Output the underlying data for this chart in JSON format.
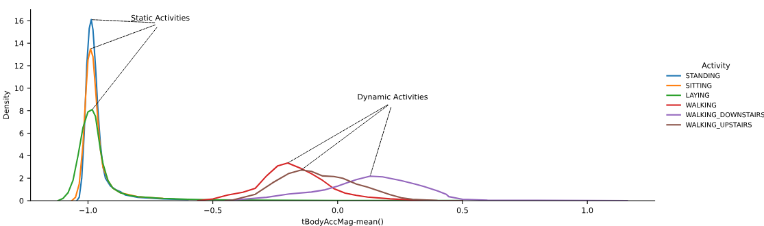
{
  "chart_data": {
    "type": "line",
    "xlabel": "tBodyAccMag-mean()",
    "ylabel": "Density",
    "legend_title": "Activity",
    "legend": "right",
    "grid": false,
    "marker": "none",
    "line_style": "solid",
    "xlim": [
      -1.23,
      1.27
    ],
    "ylim": [
      0,
      17
    ],
    "xticks": [
      {
        "value": -1.0,
        "label": "−1.0"
      },
      {
        "value": -0.5,
        "label": "−0.5"
      },
      {
        "value": 0.0,
        "label": "0.0"
      },
      {
        "value": 0.5,
        "label": "0.5"
      },
      {
        "value": 1.0,
        "label": "1.0"
      }
    ],
    "yticks": [
      0,
      2,
      4,
      6,
      8,
      10,
      12,
      14,
      16
    ],
    "annotations": [
      {
        "text": "Static Activities",
        "x": -0.987,
        "y": 16.1
      },
      {
        "text": "Dynamic Activities",
        "x": -0.2,
        "y": 3.35
      }
    ],
    "series": [
      {
        "name": "STANDING",
        "color": "#1f77b4",
        "x": [
          -1.045,
          -1.035,
          -1.025,
          -1.015,
          -1.005,
          -0.995,
          -0.987,
          -0.98,
          -0.97,
          -0.96,
          -0.95,
          -0.94,
          -0.93,
          -0.91,
          -0.89,
          -0.87,
          -0.85,
          -0.8,
          -0.7,
          -0.6
        ],
        "values": [
          0,
          0.3,
          2,
          6,
          12,
          15.3,
          16.1,
          15.2,
          12,
          8,
          5,
          3,
          2,
          1.3,
          1.0,
          0.8,
          0.5,
          0.3,
          0.15,
          0.1
        ]
      },
      {
        "name": "SITTING",
        "color": "#ff7f0e",
        "x": [
          -1.065,
          -1.05,
          -1.035,
          -1.02,
          -1.01,
          -1.0,
          -0.99,
          -0.98,
          -0.97,
          -0.96,
          -0.95,
          -0.94,
          -0.92,
          -0.9,
          -0.87,
          -0.83,
          -0.8,
          -0.7
        ],
        "values": [
          0,
          0.3,
          1.5,
          5,
          9,
          12.5,
          13.5,
          12.8,
          10,
          7,
          4.5,
          3,
          1.8,
          1.1,
          0.7,
          0.5,
          0.35,
          0.2
        ]
      },
      {
        "name": "LAYING",
        "color": "#2ca02c",
        "x": [
          -1.12,
          -1.1,
          -1.08,
          -1.06,
          -1.04,
          -1.02,
          -1.0,
          -0.983,
          -0.97,
          -0.96,
          -0.95,
          -0.94,
          -0.92,
          -0.9,
          -0.87,
          -0.83,
          -0.8,
          -0.7,
          -0.6,
          -0.5,
          -0.3,
          0.0,
          0.5
        ],
        "values": [
          0,
          0.2,
          0.7,
          1.8,
          4,
          6.5,
          7.9,
          8.1,
          7.5,
          6,
          4.5,
          3.3,
          1.8,
          1.1,
          0.7,
          0.45,
          0.35,
          0.2,
          0.12,
          0.08,
          0.04,
          0.02,
          0.01
        ]
      },
      {
        "name": "WALKING",
        "color": "#d62728",
        "x": [
          -0.56,
          -0.5,
          -0.44,
          -0.38,
          -0.33,
          -0.285,
          -0.24,
          -0.2,
          -0.15,
          -0.105,
          -0.06,
          -0.015,
          0.03,
          0.075,
          0.12,
          0.21,
          0.3,
          0.4
        ],
        "values": [
          0,
          0.15,
          0.5,
          0.75,
          1.1,
          2.2,
          3.1,
          3.35,
          2.9,
          2.4,
          1.8,
          1.07,
          0.67,
          0.47,
          0.32,
          0.16,
          0.06,
          0
        ]
      },
      {
        "name": "WALKING_DOWNSTAIRS",
        "color": "#9467bd",
        "x": [
          -0.45,
          -0.38,
          -0.285,
          -0.195,
          -0.105,
          -0.05,
          0.0,
          0.075,
          0.13,
          0.18,
          0.255,
          0.31,
          0.345,
          0.4,
          0.435,
          0.445,
          0.5,
          0.6,
          0.8,
          1.0,
          1.16
        ],
        "values": [
          0,
          0.12,
          0.3,
          0.6,
          0.77,
          0.97,
          1.3,
          1.88,
          2.18,
          2.12,
          1.78,
          1.48,
          1.27,
          0.87,
          0.57,
          0.36,
          0.12,
          0.04,
          0.03,
          0.01,
          0
        ]
      },
      {
        "name": "WALKING_UPSTAIRS",
        "color": "#8c564b",
        "x": [
          -0.45,
          -0.42,
          -0.33,
          -0.26,
          -0.195,
          -0.146,
          -0.105,
          -0.06,
          -0.015,
          0.02,
          0.075,
          0.12,
          0.165,
          0.21,
          0.255,
          0.3,
          0.4,
          0.5
        ],
        "values": [
          0,
          0.06,
          0.57,
          1.6,
          2.43,
          2.73,
          2.6,
          2.2,
          2.15,
          2.0,
          1.48,
          1.21,
          0.87,
          0.53,
          0.26,
          0.12,
          0.02,
          0
        ]
      }
    ]
  }
}
